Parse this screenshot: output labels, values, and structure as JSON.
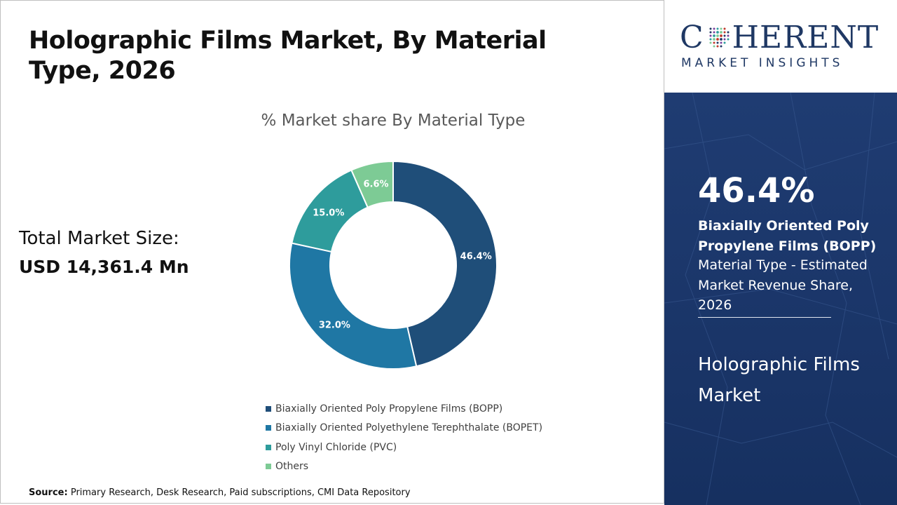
{
  "header": {
    "title": "Holographic Films Market, By Material Type, 2026"
  },
  "total_market": {
    "label": "Total Market Size:",
    "value": "USD 14,361.4 Mn"
  },
  "chart_data": {
    "type": "pie",
    "style": "donut",
    "title": "% Market share By Material Type",
    "categories": [
      "Biaxially Oriented Poly Propylene Films (BOPP)",
      "Biaxially Oriented Polyethylene Terephthalate (BOPET)",
      "Poly Vinyl Chloride (PVC)",
      "Others"
    ],
    "values": [
      46.4,
      32.0,
      15.0,
      6.6
    ],
    "data_labels": [
      "46.4%",
      "32.0%",
      "15.0%",
      "6.6%"
    ],
    "colors": [
      "#1f4e79",
      "#1f77a4",
      "#2e9c9c",
      "#7dcb95"
    ],
    "legend_position": "bottom",
    "start_angle": "12 o'clock, clockwise"
  },
  "source": {
    "label": "Source:",
    "text": "Primary Research, Desk Research, Paid subscriptions, CMI Data Repository"
  },
  "brand": {
    "logo_name": "COHERENT",
    "logo_tagline": "MARKET INSIGHTS",
    "logo_icon": "dotted-globe-icon",
    "color": "#1f3864"
  },
  "highlight": {
    "percent": "46.4%",
    "segment": "Biaxially Oriented Poly Propylene Films (BOPP)",
    "description": "Material Type - Estimated Market Revenue Share, 2026",
    "market": "Holographic Films Market",
    "panel_color": "#1f3c72"
  }
}
